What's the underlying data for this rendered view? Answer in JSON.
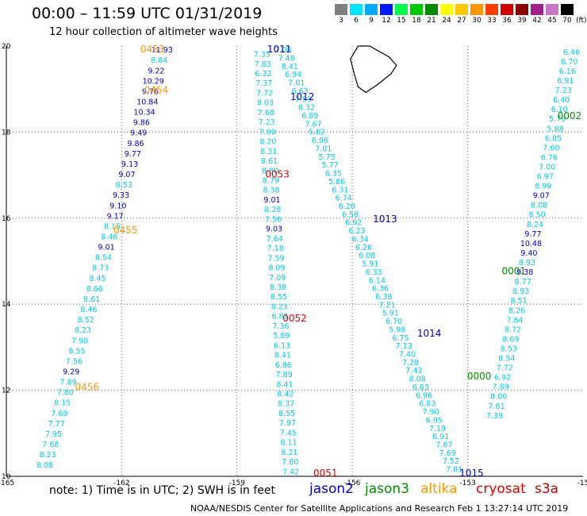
{
  "header": {
    "title": "00:00 – 11:59 UTC 01/31/2019",
    "subtitle": "12 hour collection of altimeter wave heights"
  },
  "legend": {
    "unit": "(ft)",
    "bins": [
      {
        "label": "3",
        "color": "#7f7f7f"
      },
      {
        "label": "6",
        "color": "#00e5ff"
      },
      {
        "label": "9",
        "color": "#00a8ff"
      },
      {
        "label": "12",
        "color": "#0018ff"
      },
      {
        "label": "15",
        "color": "#00ff4c"
      },
      {
        "label": "18",
        "color": "#00c800"
      },
      {
        "label": "21",
        "color": "#008a00"
      },
      {
        "label": "24",
        "color": "#ffff00"
      },
      {
        "label": "27",
        "color": "#ffc800"
      },
      {
        "label": "30",
        "color": "#ff9600"
      },
      {
        "label": "33",
        "color": "#ff3c00"
      },
      {
        "label": "36",
        "color": "#d00000"
      },
      {
        "label": "39",
        "color": "#8b0000"
      },
      {
        "label": "42",
        "color": "#a0208c"
      },
      {
        "label": "45",
        "color": "#c878c8"
      },
      {
        "label": "70",
        "color": "#000000"
      }
    ]
  },
  "map": {
    "lon_range": [
      -165,
      -150
    ],
    "lat_range": [
      10,
      20
    ],
    "lon_ticks": [
      "-165",
      "-162",
      "-159",
      "-156",
      "-153",
      "-15"
    ],
    "lat_ticks": [
      "20",
      "18",
      "16",
      "14",
      "12",
      "10"
    ],
    "island": "Hawaii (Big Island) outline"
  },
  "colors": {
    "jason2": "#0000c8",
    "jason3": "#008c00",
    "altika": "#ff9600",
    "cryosat": "#e00000",
    "s3a": "#c80000",
    "wave_low": "#00c8e6",
    "wave_mid": "#0000c8",
    "grid": "#666666"
  },
  "tracks": [
    {
      "id": "A",
      "name": "altika west",
      "start_lon": -160.95,
      "start_lat": 19.85,
      "end_lon": -164.0,
      "end_lat": 10.2,
      "values": [
        "11.93",
        "8.84",
        "9.22",
        "10.29",
        "9.76",
        "10.84",
        "10.34",
        "9.86",
        "9.49",
        "9.86",
        "9.77",
        "9.13",
        "9.07",
        "8.53",
        "9.33",
        "9.10",
        "9.17",
        "8.15",
        "8.46",
        "9.01",
        "8.54",
        "8.73",
        "8.45",
        "8.66",
        "8.61",
        "8.46",
        "8.52",
        "8.23",
        "7.98",
        "8.55",
        "7.56",
        "9.29",
        "7.89",
        "7.80",
        "8.15",
        "7.69",
        "7.77",
        "7.95",
        "7.68",
        "8.23",
        "8.08"
      ]
    },
    {
      "id": "B",
      "name": "central down",
      "start_lon": -158.35,
      "start_lat": 19.75,
      "end_lon": -157.6,
      "end_lat": 10.05,
      "values": [
        "7.35",
        "7.83",
        "6.32",
        "7.37",
        "7.72",
        "8.03",
        "7.68",
        "7.23",
        "7.90",
        "8.20",
        "8.31",
        "8.61",
        "8.80",
        "8.79",
        "8.38",
        "9.01",
        "8.28",
        "7.50",
        "9.03",
        "7.64",
        "7.18",
        "7.59",
        "8.09",
        "7.09",
        "8.38",
        "8.55",
        "8.23",
        "6.81",
        "7.36",
        "5.89",
        "6.13",
        "8.41",
        "6.86",
        "7.89",
        "8.41",
        "8.42",
        "8.37",
        "8.55",
        "7.97",
        "7.45",
        "8.11",
        "8.21",
        "7.80",
        "7.42"
      ]
    },
    {
      "id": "C",
      "name": "jason diagonal",
      "start_lon": -157.8,
      "start_lat": 19.85,
      "end_lon": -153.35,
      "end_lat": 10.1,
      "values": [
        "7.08",
        "7.48",
        "8.41",
        "6.94",
        "7.01",
        "6.63",
        "7.59",
        "8.32",
        "6.89",
        "7.67",
        "5.82",
        "6.96",
        "7.01",
        "5.75",
        "5.77",
        "6.35",
        "5.86",
        "6.31",
        "6.74",
        "6.20",
        "6.58",
        "6.92",
        "6.23",
        "6.34",
        "6.26",
        "6.08",
        "5.91",
        "6.33",
        "6.14",
        "6.36",
        "6.38",
        "7.21",
        "5.91",
        "6.70",
        "5.98",
        "6.75",
        "7.13",
        "7.40",
        "7.28",
        "7.43",
        "8.08",
        "6.63",
        "6.96",
        "6.83",
        "7.90",
        "6.95",
        "7.19",
        "6.91",
        "7.87",
        "7.69",
        "7.52",
        "7.81"
      ]
    },
    {
      "id": "D",
      "name": "east ascending",
      "start_lon": -152.3,
      "start_lat": 11.35,
      "end_lon": -150.3,
      "end_lat": 19.8,
      "values": [
        "7.39",
        "7.61",
        "8.00",
        "7.89",
        "6.92",
        "7.72",
        "8.54",
        "8.53",
        "8.69",
        "8.72",
        "7.84",
        "8.26",
        "8.51",
        "8.93",
        "8.77",
        "9.38",
        "8.93",
        "9.40",
        "10.48",
        "9.77",
        "8.24",
        "8.50",
        "8.08",
        "9.07",
        "8.99",
        "6.97",
        "7.00",
        "6.76",
        "7.60",
        "6.85",
        "5.88",
        "5.79",
        "6.10",
        "6.40",
        "7.23",
        "6.91",
        "6.16",
        "6.70",
        "6.46"
      ]
    }
  ],
  "pass_labels": [
    {
      "text": "0453",
      "lon": -161.2,
      "lat": 19.85,
      "sat": "altika"
    },
    {
      "text": "0454",
      "lon": -161.1,
      "lat": 18.9,
      "sat": "altika"
    },
    {
      "text": "0455",
      "lon": -161.9,
      "lat": 15.65,
      "sat": "altika"
    },
    {
      "text": "0456",
      "lon": -162.9,
      "lat": 12.0,
      "sat": "altika"
    },
    {
      "text": "1011",
      "lon": -157.9,
      "lat": 19.85,
      "sat": "jason2"
    },
    {
      "text": "1012",
      "lon": -157.3,
      "lat": 18.75,
      "sat": "jason2"
    },
    {
      "text": "0053",
      "lon": -157.95,
      "lat": 16.95,
      "sat": "cryosat"
    },
    {
      "text": "1013",
      "lon": -155.15,
      "lat": 15.9,
      "sat": "jason2"
    },
    {
      "text": "0052",
      "lon": -157.5,
      "lat": 13.6,
      "sat": "cryosat"
    },
    {
      "text": "1014",
      "lon": -154.0,
      "lat": 13.25,
      "sat": "jason2"
    },
    {
      "text": "0051",
      "lon": -156.7,
      "lat": 10.0,
      "sat": "cryosat"
    },
    {
      "text": "1015",
      "lon": -152.9,
      "lat": 10.0,
      "sat": "jason2"
    },
    {
      "text": "0000",
      "lon": -152.7,
      "lat": 12.25,
      "sat": "jason3"
    },
    {
      "text": "0001",
      "lon": -151.8,
      "lat": 14.7,
      "sat": "jason3"
    },
    {
      "text": "0002",
      "lon": -150.35,
      "lat": 18.3,
      "sat": "jason3"
    }
  ],
  "footer": {
    "note": "note:  1) Time is in UTC;  2) SWH is in feet",
    "sats": [
      {
        "key": "jason2",
        "label": "jason2"
      },
      {
        "key": "jason3",
        "label": "jason3"
      },
      {
        "key": "altika",
        "label": "altika"
      },
      {
        "key": "cryosat",
        "label": "cryosat"
      },
      {
        "key": "s3a",
        "label": "s3a"
      }
    ],
    "credit": "NOAA/NESDIS Center for Satellite Applications and Research    Feb  1 13:27:14 UTC 2019"
  }
}
